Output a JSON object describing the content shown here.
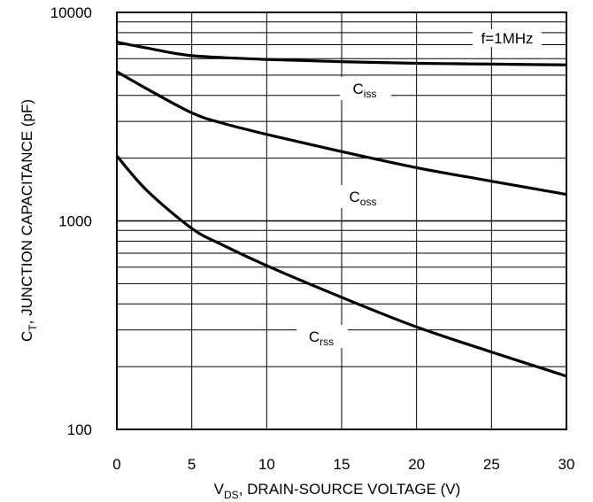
{
  "chart_data": {
    "type": "line",
    "yscale": "log",
    "xlim": [
      0,
      30
    ],
    "ylim": [
      100,
      10000
    ],
    "grid": true,
    "x_ticks": [
      "0",
      "5",
      "10",
      "15",
      "20",
      "25",
      "30"
    ],
    "y_ticks": [
      "100",
      "1000",
      "10000"
    ],
    "xlabel": {
      "main": "V",
      "sub": "DS",
      "rest": ", DRAIN-SOURCE VOLTAGE (V)"
    },
    "ylabel": {
      "main": "C",
      "sub": "T",
      "rest": ", JUNCTION CAPACITANCE (pF)"
    },
    "annotation": "f=1MHz",
    "series": [
      {
        "name": "Ciss",
        "label_main": "C",
        "label_sub": "iss",
        "x": [
          0,
          2,
          5,
          10,
          15,
          20,
          25,
          30
        ],
        "values": [
          7200,
          6750,
          6200,
          5950,
          5800,
          5700,
          5650,
          5600
        ]
      },
      {
        "name": "Coss",
        "label_main": "C",
        "label_sub": "oss",
        "x": [
          0,
          2,
          5,
          7,
          10,
          15,
          20,
          25,
          30
        ],
        "values": [
          5200,
          4300,
          3300,
          2950,
          2600,
          2150,
          1800,
          1550,
          1340
        ]
      },
      {
        "name": "Crss",
        "label_main": "C",
        "label_sub": "rss",
        "x": [
          0,
          2,
          5,
          7,
          10,
          15,
          20,
          25,
          30
        ],
        "values": [
          2050,
          1400,
          920,
          770,
          610,
          430,
          310,
          235,
          180
        ]
      }
    ]
  }
}
